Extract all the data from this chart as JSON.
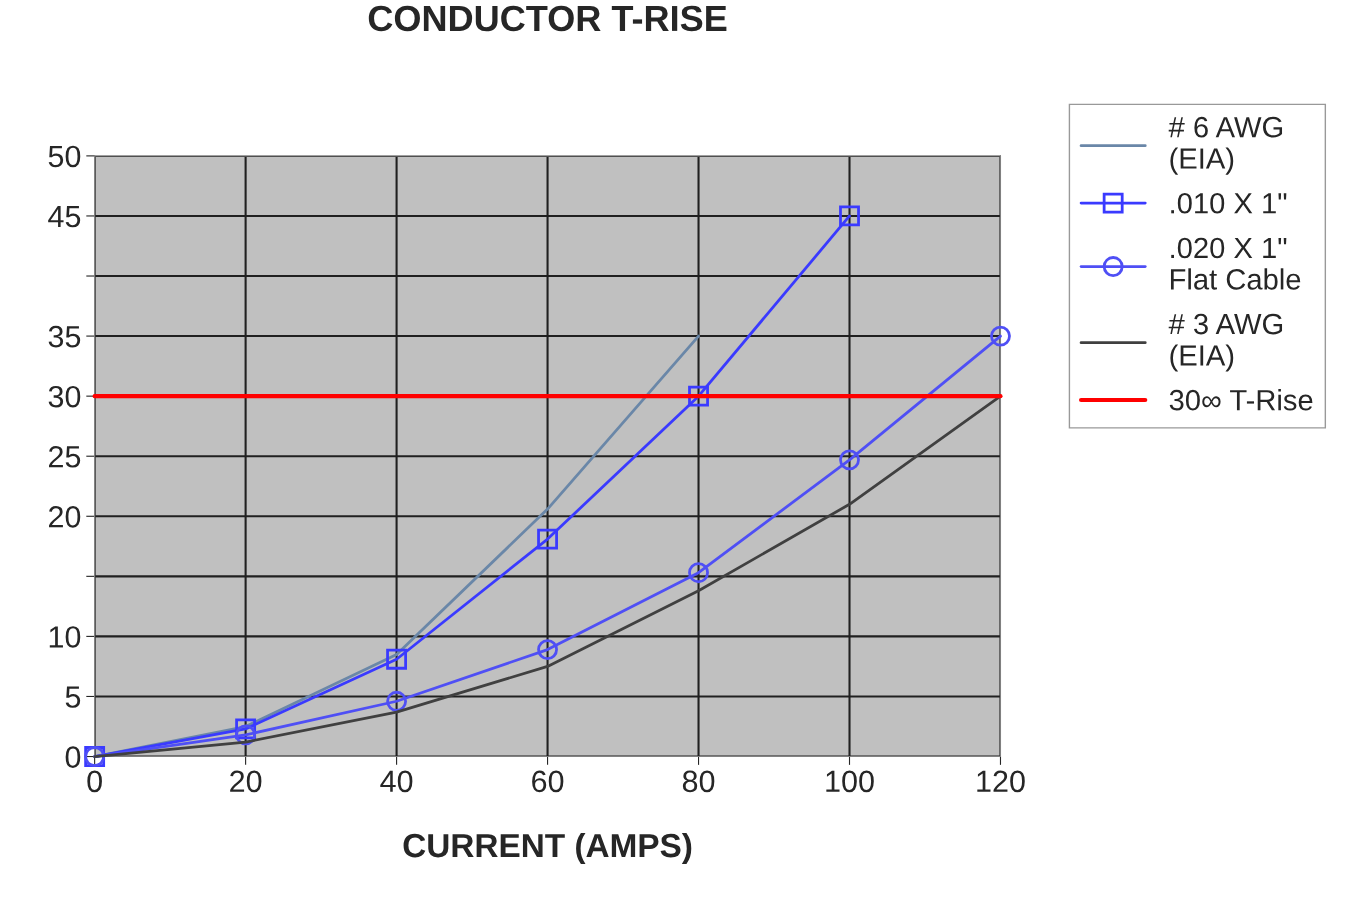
{
  "chart_data": {
    "type": "line",
    "title": "CONDUCTOR T-RISE",
    "xlabel": "CURRENT (AMPS)",
    "xlim": [
      0,
      120
    ],
    "xticks": [
      0,
      20,
      40,
      60,
      80,
      100,
      120
    ],
    "ylim": [
      0,
      50
    ],
    "yticks": [
      0,
      5,
      10,
      {
        "value": 15,
        "label": null
      },
      20,
      25,
      30,
      35,
      {
        "value": 40,
        "label": null
      },
      45,
      50
    ],
    "grid": true,
    "legend": "right",
    "series": [
      {
        "name": "# 6 AWG\n(EIA)",
        "color": "#6a87a8",
        "marker": "none",
        "x": [
          0,
          20,
          40,
          60,
          80
        ],
        "values": [
          0,
          2.5,
          8.5,
          20.6,
          35
        ]
      },
      {
        "name": ".010 X 1\"",
        "color": "#3a3aff",
        "marker": "square",
        "x": [
          0,
          20,
          40,
          60,
          80,
          100
        ],
        "values": [
          0,
          2.3,
          8.1,
          18.1,
          30,
          45
        ]
      },
      {
        "name": ".020 X 1\"\nFlat Cable",
        "color": "#4f4ff5",
        "marker": "circle",
        "x": [
          0,
          20,
          40,
          60,
          80,
          100,
          120
        ],
        "values": [
          0,
          1.8,
          4.6,
          8.9,
          15.3,
          24.7,
          35
        ]
      },
      {
        "name": "# 3 AWG\n(EIA)",
        "color": "#404040",
        "marker": "none",
        "x": [
          0,
          20,
          40,
          60,
          80,
          100,
          120
        ],
        "values": [
          0,
          1.2,
          3.7,
          7.5,
          13.8,
          21,
          30
        ]
      },
      {
        "name": "30∞ T-Rise",
        "color": "#ff0000",
        "marker": "none",
        "x": [
          0,
          120
        ],
        "values": [
          30,
          30
        ]
      }
    ]
  }
}
